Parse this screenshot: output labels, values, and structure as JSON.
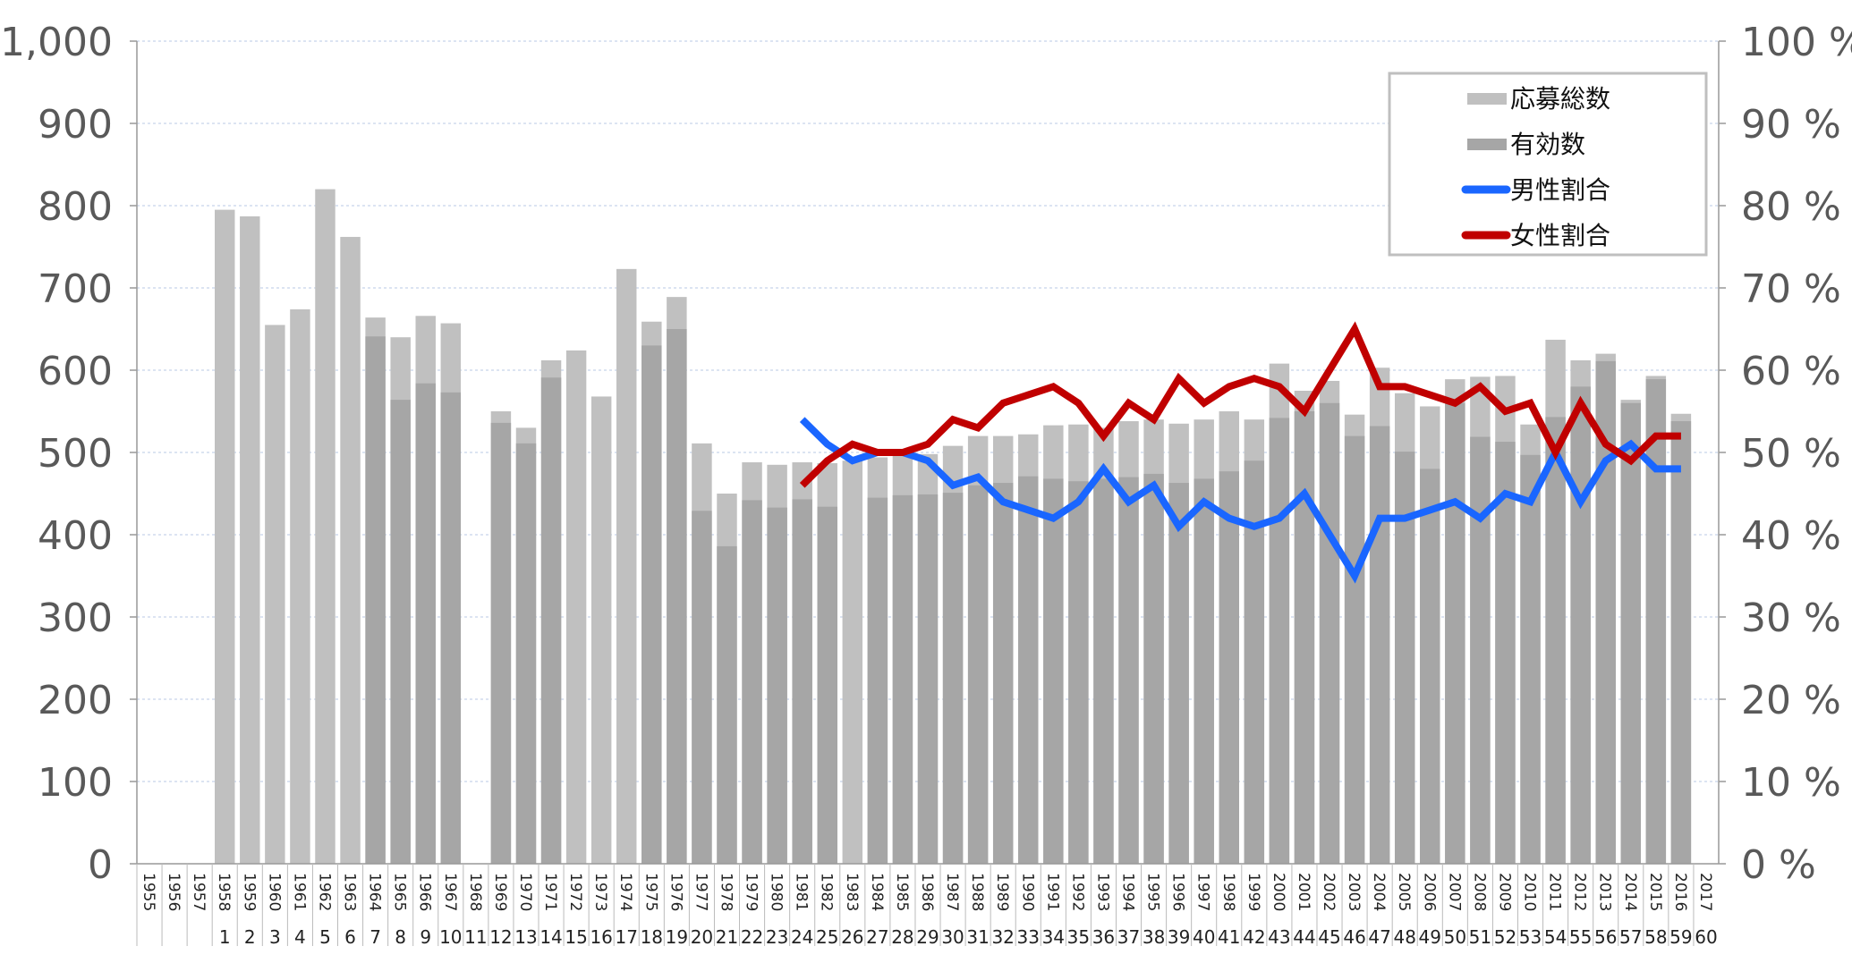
{
  "chart_data": {
    "type": "bar",
    "title": "",
    "categories": [
      "1955",
      "1956",
      "1957",
      "1958",
      "1959",
      "1960",
      "1961",
      "1962",
      "1963",
      "1964",
      "1965",
      "1966",
      "1967",
      "1968",
      "1969",
      "1970",
      "1971",
      "1972",
      "1973",
      "1974",
      "1975",
      "1976",
      "1977",
      "1978",
      "1979",
      "1980",
      "1981",
      "1982",
      "1983",
      "1984",
      "1985",
      "1986",
      "1987",
      "1988",
      "1989",
      "1990",
      "1991",
      "1992",
      "1993",
      "1994",
      "1995",
      "1996",
      "1997",
      "1998",
      "1999",
      "2000",
      "2001",
      "2002",
      "2003",
      "2004",
      "2005",
      "2006",
      "2007",
      "2008",
      "2009",
      "2010",
      "2011",
      "2012",
      "2013",
      "2014",
      "2015",
      "2016",
      "2017"
    ],
    "session_numbers": [
      "",
      "",
      "",
      "1",
      "2",
      "3",
      "4",
      "5",
      "6",
      "7",
      "8",
      "9",
      "10",
      "11",
      "12",
      "13",
      "14",
      "15",
      "16",
      "17",
      "18",
      "19",
      "20",
      "21",
      "22",
      "23",
      "24",
      "25",
      "26",
      "27",
      "28",
      "29",
      "30",
      "31",
      "32",
      "33",
      "34",
      "35",
      "36",
      "37",
      "38",
      "39",
      "40",
      "41",
      "42",
      "43",
      "44",
      "45",
      "46",
      "47",
      "48",
      "49",
      "50",
      "51",
      "52",
      "53",
      "54",
      "55",
      "56",
      "57",
      "58",
      "59",
      "60"
    ],
    "series": [
      {
        "name": "応募総数",
        "type": "bar",
        "axis": "left",
        "color": "#c0c0c0",
        "values": [
          null,
          null,
          null,
          795,
          787,
          655,
          674,
          820,
          762,
          664,
          640,
          666,
          657,
          null,
          550,
          530,
          612,
          624,
          568,
          723,
          659,
          689,
          511,
          450,
          488,
          485,
          488,
          487,
          490,
          494,
          496,
          498,
          508,
          520,
          520,
          522,
          533,
          534,
          530,
          538,
          540,
          535,
          540,
          550,
          540,
          608,
          575,
          587,
          546,
          603,
          572,
          556,
          589,
          592,
          593,
          534,
          637,
          612,
          620,
          564,
          593,
          547,
          null
        ]
      },
      {
        "name": "有効数",
        "type": "bar",
        "axis": "left",
        "color": "#a6a6a6",
        "values": [
          null,
          null,
          null,
          null,
          null,
          null,
          null,
          null,
          null,
          641,
          564,
          584,
          573,
          null,
          536,
          511,
          591,
          null,
          null,
          null,
          630,
          650,
          429,
          386,
          442,
          433,
          443,
          434,
          null,
          445,
          448,
          449,
          451,
          460,
          463,
          471,
          468,
          465,
          468,
          470,
          474,
          463,
          468,
          477,
          490,
          542,
          550,
          560,
          520,
          532,
          501,
          480,
          560,
          519,
          513,
          497,
          543,
          580,
          611,
          560,
          589,
          538,
          null
        ]
      },
      {
        "name": "男性割合",
        "type": "line",
        "axis": "right",
        "color": "#1a66ff",
        "values": [
          null,
          null,
          null,
          null,
          null,
          null,
          null,
          null,
          null,
          null,
          null,
          null,
          null,
          null,
          null,
          null,
          null,
          null,
          null,
          null,
          null,
          null,
          null,
          null,
          null,
          null,
          54,
          51,
          49,
          50,
          50,
          49,
          46,
          47,
          44,
          43,
          42,
          44,
          48,
          44,
          46,
          41,
          44,
          42,
          41,
          42,
          45,
          40,
          35,
          42,
          42,
          43,
          44,
          42,
          45,
          44,
          50,
          44,
          49,
          51,
          48,
          48,
          null
        ]
      },
      {
        "name": "女性割合",
        "type": "line",
        "axis": "right",
        "color": "#c00000",
        "values": [
          null,
          null,
          null,
          null,
          null,
          null,
          null,
          null,
          null,
          null,
          null,
          null,
          null,
          null,
          null,
          null,
          null,
          null,
          null,
          null,
          null,
          null,
          null,
          null,
          null,
          null,
          46,
          49,
          51,
          50,
          50,
          51,
          54,
          53,
          56,
          57,
          58,
          56,
          52,
          56,
          54,
          59,
          56,
          58,
          59,
          58,
          55,
          60,
          65,
          58,
          58,
          57,
          56,
          58,
          55,
          56,
          50,
          56,
          51,
          49,
          52,
          52,
          null
        ]
      }
    ],
    "ylim": [
      0,
      1000
    ],
    "y2lim": [
      0,
      100
    ],
    "yticks": [
      "0",
      "100",
      "200",
      "300",
      "400",
      "500",
      "600",
      "700",
      "800",
      "900",
      "1,000"
    ],
    "y2ticks": [
      "0 %",
      "10 %",
      "20 %",
      "30 %",
      "40 %",
      "50 %",
      "60 %",
      "70 %",
      "80 %",
      "90 %",
      "100 %"
    ],
    "grid": true,
    "legend_position": "top-right",
    "xlabel": "",
    "ylabel": "",
    "y2label": ""
  }
}
